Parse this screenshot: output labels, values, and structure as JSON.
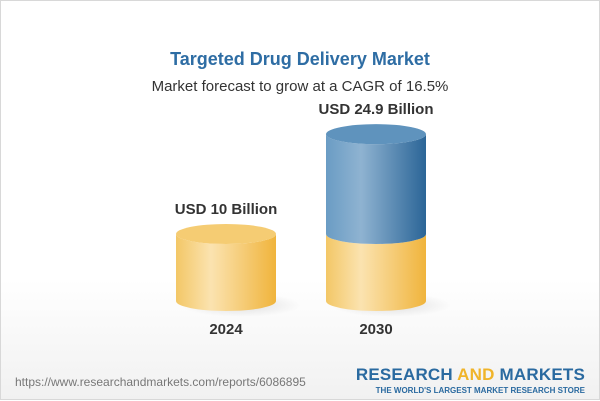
{
  "header": {
    "title": "Targeted Drug Delivery Market",
    "subtitle": "Market forecast to grow at a CAGR of 16.5%"
  },
  "chart_data": {
    "type": "bar",
    "style": "3d-cylinder",
    "title": "Targeted Drug Delivery Market",
    "subtitle": "Market forecast to grow at a CAGR of 16.5%",
    "categories": [
      "2024",
      "2030"
    ],
    "values": [
      10,
      24.9
    ],
    "unit": "USD Billion",
    "data_labels": [
      "USD 10 Billion",
      "USD 24.9 Billion"
    ],
    "colors": {
      "base": "#f2c057",
      "growth": "#3f78a8"
    },
    "grid": false
  },
  "footer": {
    "url": "https://www.researchandmarkets.com/reports/6086895",
    "logo_part1": "RESEARCH ",
    "logo_part2": "AND",
    "logo_part3": " MARKETS",
    "tagline": "THE WORLD'S LARGEST MARKET RESEARCH STORE"
  }
}
